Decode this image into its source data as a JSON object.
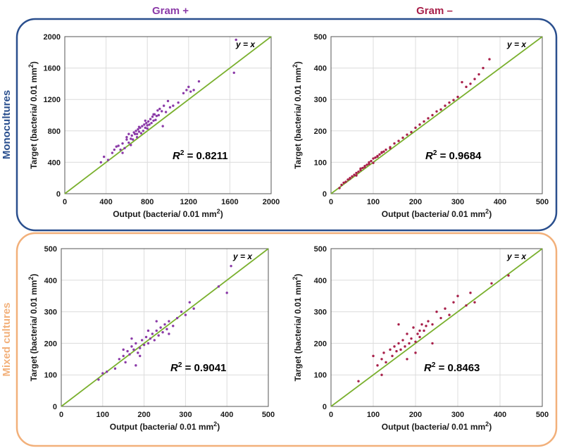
{
  "columns": [
    {
      "label": "Gram +",
      "color": "#8b3aa8"
    },
    {
      "label": "Gram –",
      "color": "#a8204a"
    }
  ],
  "rows": [
    {
      "label": "Monocultures",
      "color": "#2a4f8e"
    },
    {
      "label": "Mixed cultures",
      "color": "#f2b07a"
    }
  ],
  "identity_label": "y = x",
  "identity_color": "#7ab02e",
  "point_colors": {
    "gram_pos": "#8b3aa8",
    "gram_neg": "#a8204a"
  },
  "chart_data": [
    {
      "type": "scatter",
      "id": "mono-gram-pos",
      "xlabel": "Output (bacteria/ 0.01 mm2)",
      "ylabel": "Target (bacteria/ 0.01 mm2)",
      "xlim": [
        0,
        2000
      ],
      "ylim": [
        0,
        2000
      ],
      "xticks": [
        "0",
        "400",
        "800",
        "1200",
        "1600",
        "2000"
      ],
      "yticks": [
        "0",
        "400",
        "800",
        "1200",
        "1600",
        "2000"
      ],
      "r2_label": "R",
      "r2_value": " = 0.8211",
      "series_color": "gram_pos",
      "x": [
        350,
        380,
        420,
        460,
        480,
        500,
        520,
        540,
        560,
        580,
        600,
        600,
        620,
        620,
        640,
        650,
        660,
        670,
        680,
        690,
        700,
        700,
        710,
        720,
        730,
        740,
        750,
        760,
        770,
        780,
        790,
        800,
        800,
        810,
        820,
        830,
        840,
        850,
        860,
        870,
        880,
        890,
        900,
        910,
        920,
        940,
        960,
        980,
        1000,
        1020,
        1050,
        1100,
        1150,
        1180,
        1200,
        1220,
        1250,
        1300,
        1660,
        1640,
        560,
        640,
        720,
        780,
        860,
        950
      ],
      "y": [
        400,
        470,
        430,
        520,
        560,
        600,
        610,
        560,
        640,
        580,
        690,
        720,
        650,
        760,
        700,
        740,
        690,
        780,
        760,
        800,
        720,
        760,
        820,
        790,
        840,
        770,
        860,
        800,
        880,
        840,
        900,
        830,
        870,
        920,
        880,
        950,
        900,
        980,
        930,
        1010,
        940,
        990,
        1060,
        1000,
        1080,
        1050,
        1120,
        1040,
        1180,
        1100,
        1120,
        1160,
        1280,
        1320,
        1360,
        1300,
        1320,
        1430,
        1960,
        1540,
        520,
        620,
        850,
        930,
        1010,
        860
      ]
    },
    {
      "type": "scatter",
      "id": "mono-gram-neg",
      "xlabel": "Output (bacteria/ 0.01 mm2)",
      "ylabel": "Target (bacteria/ 0.01 mm2)",
      "xlim": [
        0,
        500
      ],
      "ylim": [
        0,
        500
      ],
      "xticks": [
        "0",
        "100",
        "200",
        "300",
        "400",
        "500"
      ],
      "yticks": [
        "0",
        "100",
        "200",
        "300",
        "400",
        "500"
      ],
      "r2_label": "R",
      "r2_value": " = 0.9684",
      "series_color": "gram_neg",
      "x": [
        20,
        25,
        30,
        35,
        40,
        45,
        50,
        55,
        60,
        65,
        70,
        75,
        80,
        85,
        90,
        95,
        100,
        105,
        110,
        115,
        120,
        125,
        130,
        140,
        150,
        160,
        170,
        180,
        190,
        200,
        210,
        220,
        230,
        240,
        250,
        260,
        270,
        280,
        290,
        300,
        310,
        320,
        330,
        340,
        350,
        360,
        375,
        60,
        80,
        100,
        120,
        140,
        45,
        70,
        90,
        110
      ],
      "y": [
        18,
        28,
        35,
        38,
        45,
        48,
        55,
        60,
        66,
        70,
        75,
        82,
        88,
        92,
        100,
        104,
        112,
        115,
        120,
        125,
        132,
        134,
        140,
        148,
        160,
        168,
        178,
        188,
        196,
        210,
        220,
        230,
        240,
        250,
        262,
        268,
        280,
        290,
        298,
        308,
        355,
        340,
        350,
        365,
        380,
        400,
        428,
        58,
        85,
        98,
        130,
        145,
        50,
        80,
        95,
        118
      ]
    },
    {
      "type": "scatter",
      "id": "mixed-gram-pos",
      "xlabel": "Output (bacteria/ 0.01 mm2)",
      "ylabel": "Target (bacteria/ 0.01 mm2)",
      "xlim": [
        0,
        500
      ],
      "ylim": [
        0,
        500
      ],
      "xticks": [
        "0",
        "100",
        "200",
        "300",
        "400",
        "500"
      ],
      "yticks": [
        "0",
        "100",
        "200",
        "300",
        "400",
        "500"
      ],
      "r2_label": "R",
      "r2_value": " = 0.9041",
      "series_color": "gram_pos",
      "x": [
        90,
        100,
        110,
        130,
        140,
        150,
        155,
        160,
        165,
        170,
        175,
        180,
        185,
        190,
        195,
        200,
        205,
        210,
        215,
        220,
        225,
        230,
        235,
        240,
        245,
        250,
        255,
        260,
        270,
        280,
        290,
        300,
        310,
        320,
        380,
        400,
        410,
        170,
        190,
        210,
        230,
        260,
        150,
        180
      ],
      "y": [
        85,
        105,
        110,
        120,
        150,
        160,
        140,
        175,
        165,
        190,
        180,
        200,
        170,
        185,
        210,
        195,
        220,
        200,
        215,
        230,
        210,
        240,
        225,
        250,
        235,
        260,
        245,
        270,
        255,
        280,
        300,
        290,
        330,
        310,
        380,
        360,
        445,
        215,
        160,
        240,
        270,
        230,
        180,
        130
      ]
    },
    {
      "type": "scatter",
      "id": "mixed-gram-neg",
      "xlabel": "Output (bacteria/ 0.01 mm2)",
      "ylabel": "Target (bacteria/ 0.01 mm2)",
      "xlim": [
        0,
        500
      ],
      "ylim": [
        0,
        500
      ],
      "xticks": [
        "0",
        "100",
        "200",
        "300",
        "400",
        "500"
      ],
      "yticks": [
        "0",
        "100",
        "200",
        "300",
        "400",
        "500"
      ],
      "r2_label": "R",
      "r2_value": " = 0.8463",
      "series_color": "gram_neg",
      "x": [
        65,
        100,
        110,
        120,
        125,
        130,
        140,
        145,
        150,
        155,
        160,
        165,
        170,
        175,
        180,
        185,
        190,
        195,
        200,
        205,
        210,
        215,
        220,
        225,
        230,
        240,
        250,
        260,
        270,
        280,
        290,
        300,
        320,
        330,
        340,
        380,
        420,
        120,
        160,
        200,
        240,
        180,
        210
      ],
      "y": [
        80,
        160,
        130,
        150,
        170,
        140,
        180,
        160,
        190,
        175,
        200,
        180,
        210,
        190,
        230,
        200,
        215,
        250,
        205,
        230,
        220,
        260,
        240,
        255,
        270,
        260,
        300,
        280,
        310,
        290,
        330,
        350,
        320,
        360,
        330,
        390,
        415,
        100,
        260,
        170,
        200,
        150,
        240
      ]
    }
  ]
}
